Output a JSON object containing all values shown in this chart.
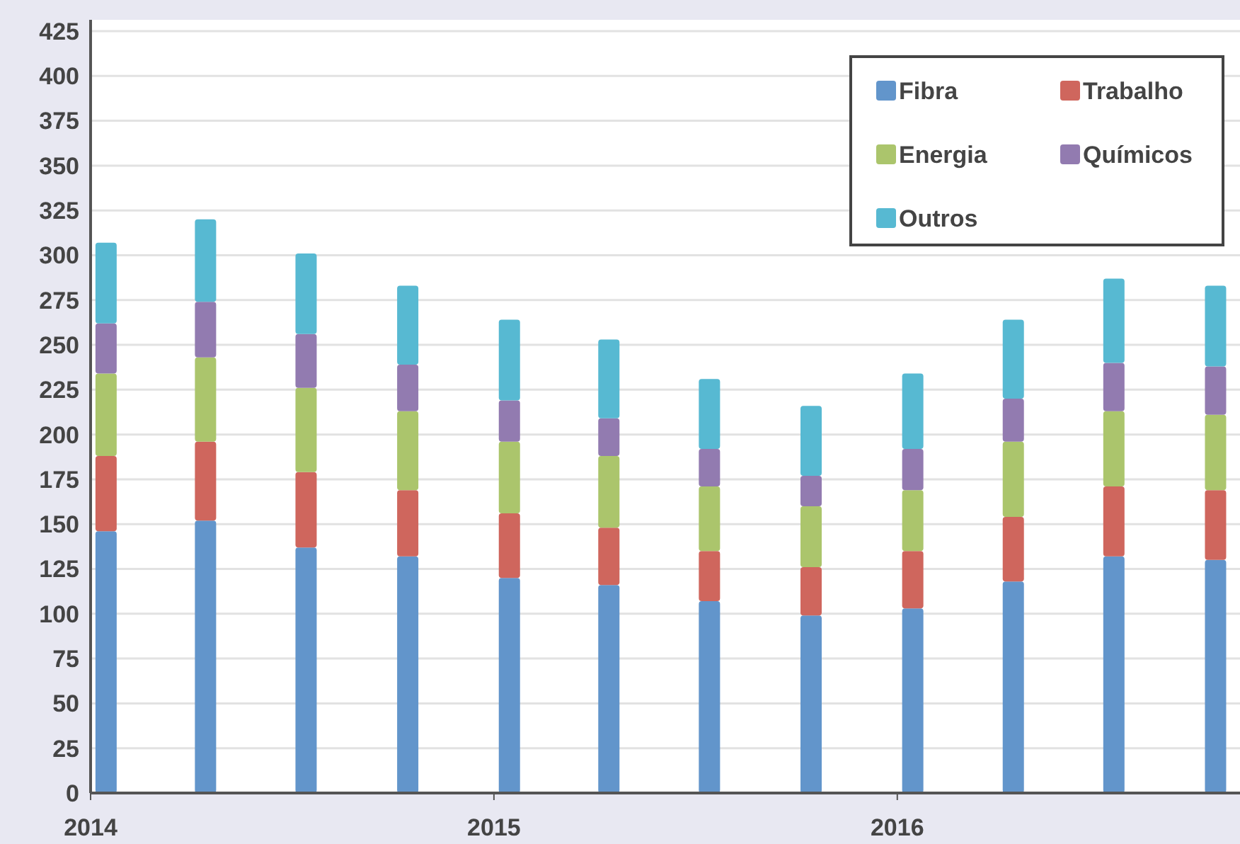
{
  "chart_data": {
    "type": "bar",
    "stacked": true,
    "x": [
      "2014-01-15",
      "2014-04-15",
      "2014-07-15",
      "2014-10-15",
      "2015-01-15",
      "2015-04-15",
      "2015-07-15",
      "2015-10-15",
      "2016-01-15",
      "2016-04-15",
      "2016-07-15",
      "2016-10-15"
    ],
    "xlim": [
      "2014-01-01",
      "2016-11-01"
    ],
    "xticks": [
      {
        "value": "2014-01-01",
        "label": "2014"
      },
      {
        "value": "2015-01-01",
        "label": "2015"
      },
      {
        "value": "2016-01-01",
        "label": "2016"
      }
    ],
    "ylim": [
      0,
      425
    ],
    "yticks": [
      0,
      25,
      50,
      75,
      100,
      125,
      150,
      175,
      200,
      225,
      250,
      275,
      300,
      325,
      350,
      375,
      400,
      425
    ],
    "grid": "y",
    "legend": "top right",
    "series": [
      {
        "name": "Fibra",
        "color": "#6295cb",
        "values": [
          146,
          152,
          137,
          132,
          120,
          116,
          107,
          99,
          103,
          118,
          132,
          130
        ]
      },
      {
        "name": "Trabalho",
        "color": "#cf665d",
        "values": [
          42,
          44,
          42,
          37,
          36,
          32,
          28,
          27,
          32,
          36,
          39,
          39
        ]
      },
      {
        "name": "Energia",
        "color": "#abc56c",
        "values": [
          46,
          47,
          47,
          44,
          40,
          40,
          36,
          34,
          34,
          42,
          42,
          42
        ]
      },
      {
        "name": "Químicos",
        "color": "#927bb0",
        "values": [
          28,
          31,
          30,
          26,
          23,
          21,
          21,
          17,
          23,
          24,
          27,
          27
        ]
      },
      {
        "name": "Outros",
        "color": "#57b9d2",
        "values": [
          45,
          46,
          45,
          44,
          45,
          44,
          39,
          39,
          42,
          44,
          47,
          45
        ]
      }
    ]
  }
}
